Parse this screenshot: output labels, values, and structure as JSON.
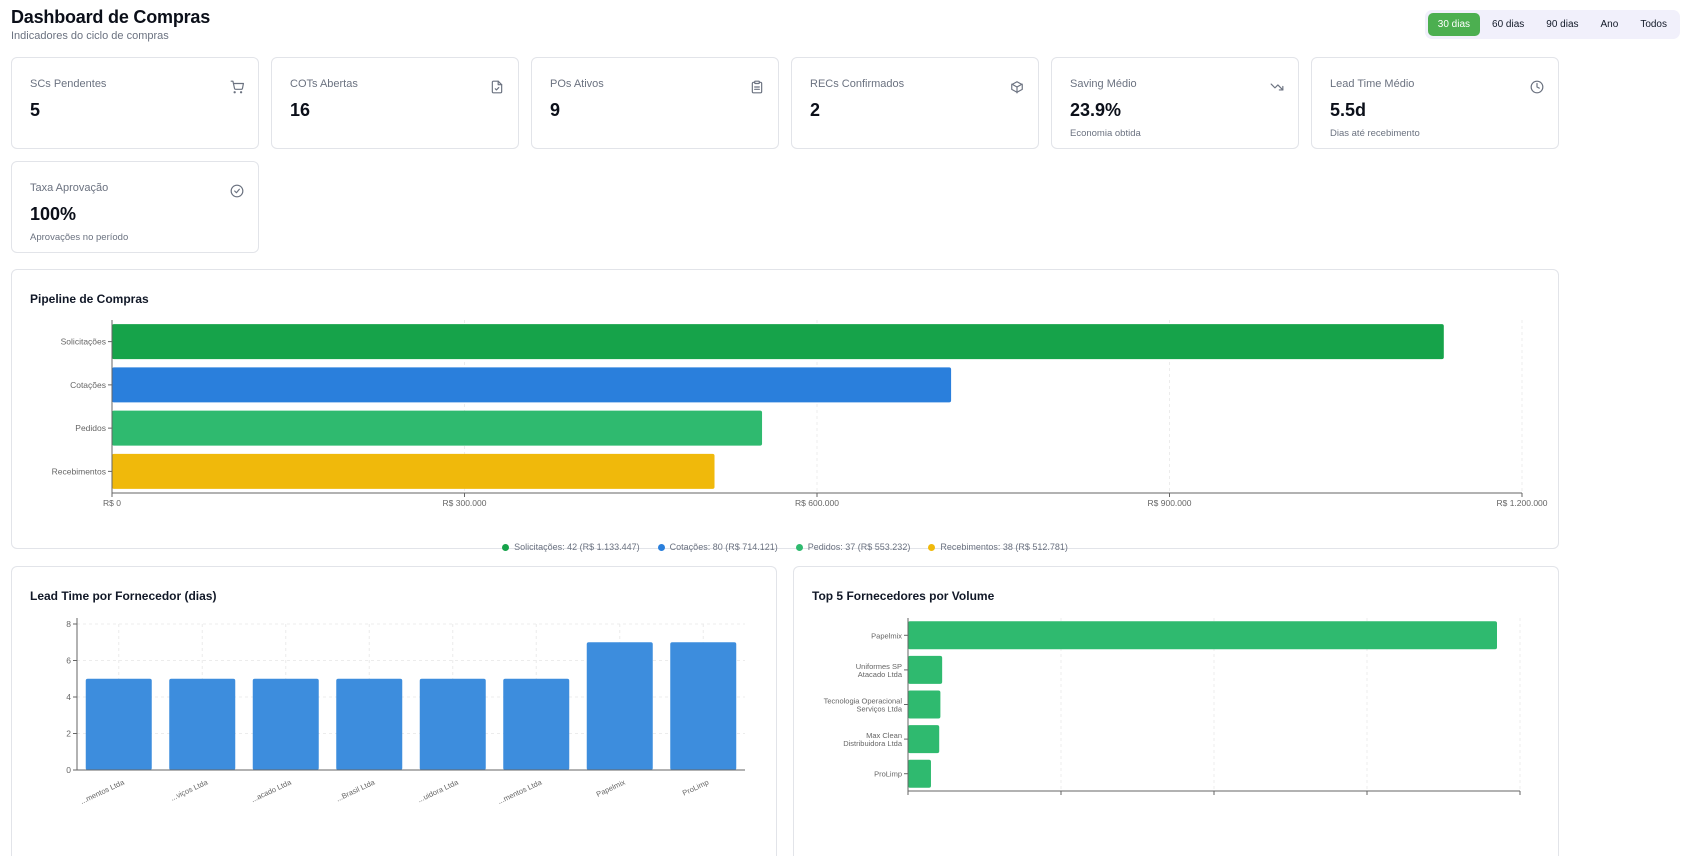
{
  "header": {
    "title": "Dashboard de Compras",
    "subtitle": "Indicadores do ciclo de compras"
  },
  "period_filter": {
    "options": [
      "30 dias",
      "60 dias",
      "90 dias",
      "Ano",
      "Todos"
    ],
    "active": "30 dias"
  },
  "kpis": [
    {
      "label": "SCs Pendentes",
      "value": "5",
      "sub": "",
      "icon": "cart-icon"
    },
    {
      "label": "COTs Abertas",
      "value": "16",
      "sub": "",
      "icon": "document-icon"
    },
    {
      "label": "POs Ativos",
      "value": "9",
      "sub": "",
      "icon": "clipboard-icon"
    },
    {
      "label": "RECs Confirmados",
      "value": "2",
      "sub": "",
      "icon": "package-icon"
    },
    {
      "label": "Saving Médio",
      "value": "23.9%",
      "sub": "Economia obtida",
      "icon": "trending-down-icon"
    },
    {
      "label": "Lead Time Médio",
      "value": "5.5d",
      "sub": "Dias até recebimento",
      "icon": "clock-icon"
    },
    {
      "label": "Taxa Aprovação",
      "value": "100%",
      "sub": "Aprovações no período",
      "icon": "check-circle-icon"
    }
  ],
  "pipeline": {
    "title": "Pipeline de Compras",
    "legend": [
      "Solicitações: 42 (R$ 1.133.447)",
      "Cotações: 80 (R$ 714.121)",
      "Pedidos: 37 (R$ 553.232)",
      "Recebimentos: 38 (R$ 512.781)"
    ]
  },
  "lead_time": {
    "title": "Lead Time por Fornecedor (dias)"
  },
  "top_suppliers": {
    "title": "Top 5 Fornecedores por Volume"
  },
  "colors": {
    "green_dark": "#16a34a",
    "blue": "#2a7fdc",
    "green": "#2fba6f",
    "yellow": "#f0b90b",
    "bar_blue": "#3d8ddd",
    "accent": "#4caf50"
  },
  "chart_data": [
    {
      "type": "bar",
      "orientation": "horizontal",
      "categories": [
        "Solicitações",
        "Cotações",
        "Pedidos",
        "Recebimentos"
      ],
      "values": [
        1133447,
        714121,
        553232,
        512781
      ],
      "xlim": [
        0,
        1200000
      ],
      "xticks": [
        "R$ 0",
        "R$ 300.000",
        "R$ 600.000",
        "R$ 900.000",
        "R$ 1.200.000"
      ],
      "grid": true,
      "legend_placement": "bottom"
    },
    {
      "type": "bar",
      "categories": [
        "...mentos Ltda",
        "...viços Ltda",
        "...acado Ltda",
        "...Brasil Ltda",
        "...uidora Ltda",
        "...mentos Ltda",
        "Papelmix",
        "ProLimp"
      ],
      "values": [
        5,
        5,
        5,
        5,
        5,
        5,
        7,
        7
      ],
      "ylim": [
        0,
        8
      ],
      "yticks": [
        "0",
        "2",
        "4",
        "6",
        "8"
      ],
      "grid": true
    },
    {
      "type": "bar",
      "orientation": "horizontal",
      "categories": [
        "Papelmix",
        "Uniformes SP Atacado Ltda",
        "Tecnologia Operacional Serviços Ltda",
        "Max Clean Distribuidora Ltda",
        "ProLimp"
      ],
      "values": [
        100,
        5.8,
        5.5,
        5.3,
        3.9
      ],
      "grid": true
    }
  ]
}
